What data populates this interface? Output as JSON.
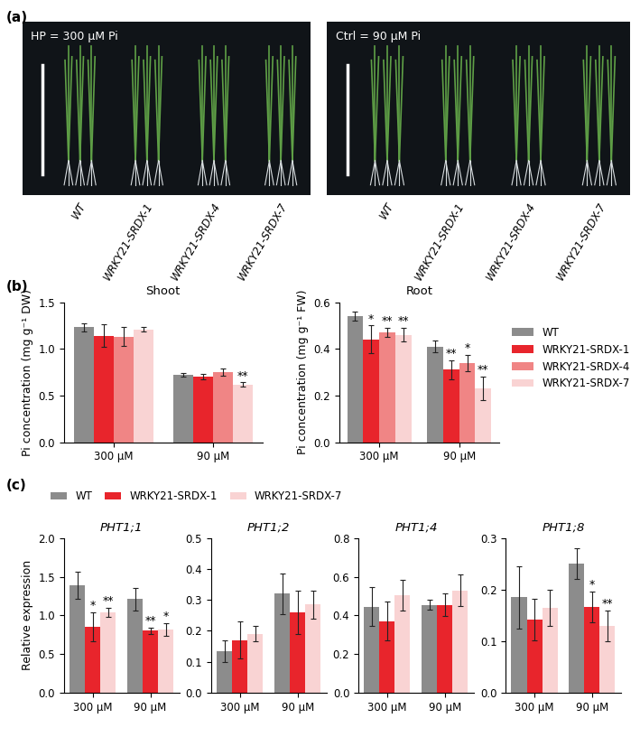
{
  "panel_labels": [
    "(a)",
    "(b)",
    "(c)"
  ],
  "photo_panels": [
    {
      "label": "HP = 300 μM Pi",
      "genotypes": [
        "WT",
        "WRKY21-SRDX-1",
        "WRKY21-SRDX-4",
        "WRKY21-SRDX-7"
      ]
    },
    {
      "label": "Ctrl = 90 μM Pi",
      "genotypes": [
        "WT",
        "WRKY21-SRDX-1",
        "WRKY21-SRDX-4",
        "WRKY21-SRDX-7"
      ]
    }
  ],
  "chart_data": [
    {
      "type": "bar",
      "panel": "(b)",
      "title": "Shoot",
      "y_label": "Pi concentration (mg g⁻¹ DW)",
      "categories": [
        "300 μM",
        "90 μM"
      ],
      "series": [
        {
          "name": "WT",
          "color": "#8c8c8c",
          "values": [
            1.23,
            0.72
          ],
          "errors": [
            0.04,
            0.02
          ],
          "significance": [
            null,
            null
          ]
        },
        {
          "name": "WRKY21-SRDX-1",
          "color": "#e8252c",
          "values": [
            1.14,
            0.7
          ],
          "errors": [
            0.12,
            0.03
          ],
          "significance": [
            null,
            null
          ]
        },
        {
          "name": "WRKY21-SRDX-4",
          "color": "#f08585",
          "values": [
            1.13,
            0.75
          ],
          "errors": [
            0.1,
            0.04
          ],
          "significance": [
            null,
            null
          ]
        },
        {
          "name": "WRKY21-SRDX-7",
          "color": "#f9d3d3",
          "values": [
            1.21,
            0.62
          ],
          "errors": [
            0.02,
            0.02
          ],
          "significance": [
            null,
            "**"
          ]
        }
      ],
      "ylim": [
        0,
        1.5
      ],
      "yticks": [
        {
          "value": 0,
          "label": "0.0"
        },
        {
          "value": 0.5,
          "label": "0.5"
        },
        {
          "value": 1.0,
          "label": "1.0"
        },
        {
          "value": 1.5,
          "label": "1.5"
        }
      ]
    },
    {
      "type": "bar",
      "panel": "(b)",
      "title": "Root",
      "y_label": "Pi concentration (mg g⁻¹ FW)",
      "categories": [
        "300 μM",
        "90 μM"
      ],
      "series": [
        {
          "name": "WT",
          "color": "#8c8c8c",
          "values": [
            0.54,
            0.41
          ],
          "errors": [
            0.02,
            0.025
          ],
          "significance": [
            null,
            null
          ]
        },
        {
          "name": "WRKY21-SRDX-1",
          "color": "#e8252c",
          "values": [
            0.44,
            0.31
          ],
          "errors": [
            0.06,
            0.04
          ],
          "significance": [
            "*",
            "**"
          ]
        },
        {
          "name": "WRKY21-SRDX-4",
          "color": "#f08585",
          "values": [
            0.47,
            0.34
          ],
          "errors": [
            0.02,
            0.035
          ],
          "significance": [
            "**",
            "*"
          ]
        },
        {
          "name": "WRKY21-SRDX-7",
          "color": "#f9d3d3",
          "values": [
            0.46,
            0.23
          ],
          "errors": [
            0.03,
            0.05
          ],
          "significance": [
            "**",
            "**"
          ]
        }
      ],
      "ylim": [
        0,
        0.6
      ],
      "yticks": [
        {
          "value": 0,
          "label": "0.0"
        },
        {
          "value": 0.2,
          "label": "0.2"
        },
        {
          "value": 0.4,
          "label": "0.4"
        },
        {
          "value": 0.6,
          "label": "0.6"
        }
      ],
      "legend": "right"
    },
    {
      "type": "bar",
      "panel": "(c)",
      "title": "PHT1;1",
      "y_label": "Relative expression",
      "categories": [
        "300 μM",
        "90 μM"
      ],
      "series": [
        {
          "name": "WT",
          "color": "#8c8c8c",
          "values": [
            1.39,
            1.21
          ],
          "errors": [
            0.17,
            0.15
          ],
          "significance": [
            null,
            null
          ]
        },
        {
          "name": "WRKY21-SRDX-1",
          "color": "#e8252c",
          "values": [
            0.85,
            0.8
          ],
          "errors": [
            0.19,
            0.04
          ],
          "significance": [
            "*",
            "**"
          ]
        },
        {
          "name": "WRKY21-SRDX-7",
          "color": "#f9d3d3",
          "values": [
            1.04,
            0.82
          ],
          "errors": [
            0.06,
            0.08
          ],
          "significance": [
            "**",
            "*"
          ]
        }
      ],
      "ylim": [
        0,
        2.0
      ],
      "yticks": [
        {
          "value": 0,
          "label": "0.0"
        },
        {
          "value": 0.5,
          "label": "0.5"
        },
        {
          "value": 1.0,
          "label": "1.0"
        },
        {
          "value": 1.5,
          "label": "1.5"
        },
        {
          "value": 2.0,
          "label": "2.0"
        }
      ],
      "legend": "top"
    },
    {
      "type": "bar",
      "panel": "(c)",
      "title": "PHT1;2",
      "categories": [
        "300 μM",
        "90 μM"
      ],
      "series": [
        {
          "name": "WT",
          "color": "#8c8c8c",
          "values": [
            0.135,
            0.32
          ],
          "errors": [
            0.035,
            0.065
          ],
          "significance": [
            null,
            null
          ]
        },
        {
          "name": "WRKY21-SRDX-1",
          "color": "#e8252c",
          "values": [
            0.17,
            0.26
          ],
          "errors": [
            0.06,
            0.07
          ],
          "significance": [
            null,
            null
          ]
        },
        {
          "name": "WRKY21-SRDX-7",
          "color": "#f9d3d3",
          "values": [
            0.19,
            0.285
          ],
          "errors": [
            0.025,
            0.045
          ],
          "significance": [
            null,
            null
          ]
        }
      ],
      "ylim": [
        0,
        0.5
      ],
      "yticks": [
        {
          "value": 0,
          "label": "0.0"
        },
        {
          "value": 0.1,
          "label": "0.1"
        },
        {
          "value": 0.2,
          "label": "0.2"
        },
        {
          "value": 0.3,
          "label": "0.3"
        },
        {
          "value": 0.4,
          "label": "0.4"
        },
        {
          "value": 0.5,
          "label": "0.5"
        }
      ]
    },
    {
      "type": "bar",
      "panel": "(c)",
      "title": "PHT1;4",
      "categories": [
        "300 μM",
        "90 μM"
      ],
      "series": [
        {
          "name": "WT",
          "color": "#8c8c8c",
          "values": [
            0.445,
            0.455
          ],
          "errors": [
            0.1,
            0.025
          ],
          "significance": [
            null,
            null
          ]
        },
        {
          "name": "WRKY21-SRDX-1",
          "color": "#e8252c",
          "values": [
            0.37,
            0.455
          ],
          "errors": [
            0.1,
            0.06
          ],
          "significance": [
            null,
            null
          ]
        },
        {
          "name": "WRKY21-SRDX-7",
          "color": "#f9d3d3",
          "values": [
            0.505,
            0.53
          ],
          "errors": [
            0.08,
            0.08
          ],
          "significance": [
            null,
            null
          ]
        }
      ],
      "ylim": [
        0,
        0.8
      ],
      "yticks": [
        {
          "value": 0,
          "label": "0.0"
        },
        {
          "value": 0.2,
          "label": "0.2"
        },
        {
          "value": 0.4,
          "label": "0.4"
        },
        {
          "value": 0.6,
          "label": "0.6"
        },
        {
          "value": 0.8,
          "label": "0.8"
        }
      ]
    },
    {
      "type": "bar",
      "panel": "(c)",
      "title": "PHT1;8",
      "categories": [
        "300 μM",
        "90 μM"
      ],
      "series": [
        {
          "name": "WT",
          "color": "#8c8c8c",
          "values": [
            0.185,
            0.25
          ],
          "errors": [
            0.06,
            0.03
          ],
          "significance": [
            null,
            null
          ]
        },
        {
          "name": "WRKY21-SRDX-1",
          "color": "#e8252c",
          "values": [
            0.142,
            0.167
          ],
          "errors": [
            0.04,
            0.03
          ],
          "significance": [
            null,
            "*"
          ]
        },
        {
          "name": "WRKY21-SRDX-7",
          "color": "#f9d3d3",
          "values": [
            0.165,
            0.13
          ],
          "errors": [
            0.035,
            0.03
          ],
          "significance": [
            null,
            "**"
          ]
        }
      ],
      "ylim": [
        0,
        0.3
      ],
      "yticks": [
        {
          "value": 0,
          "label": "0.0"
        },
        {
          "value": 0.1,
          "label": "0.1"
        },
        {
          "value": 0.2,
          "label": "0.2"
        },
        {
          "value": 0.3,
          "label": "0.3"
        }
      ]
    }
  ]
}
